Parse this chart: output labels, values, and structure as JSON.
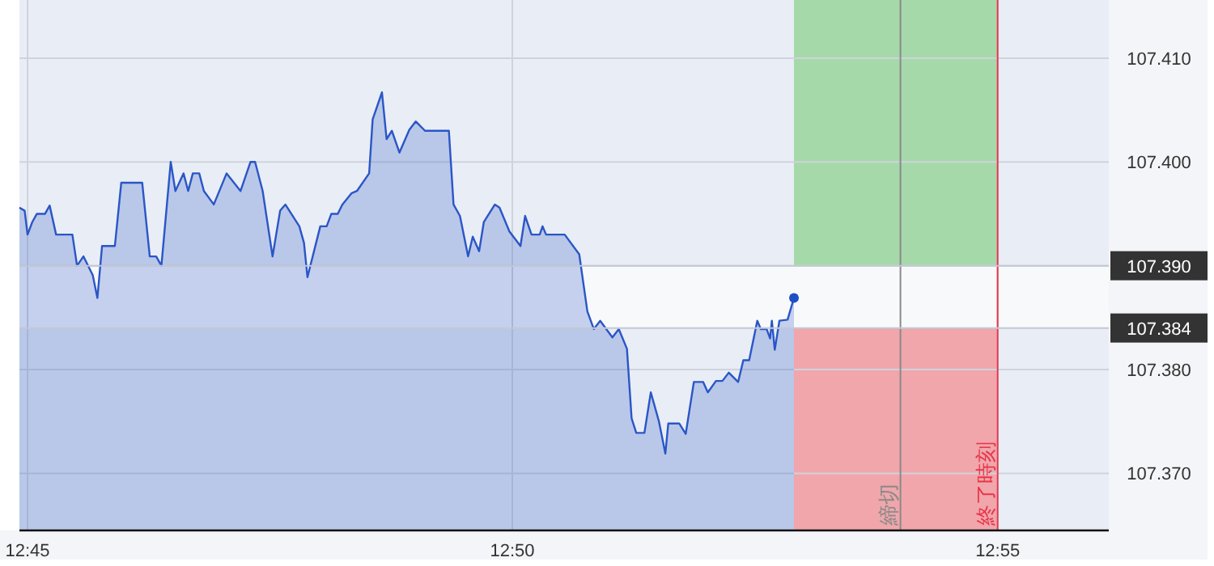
{
  "chart_data": {
    "type": "area",
    "xlim": [
      12.7486,
      12.9358
    ],
    "ylim": [
      107.3645,
      107.4156
    ],
    "xticks": [
      {
        "value": 12.75,
        "label": "12:45"
      },
      {
        "value": 12.8333,
        "label": "12:50"
      },
      {
        "value": 12.9167,
        "label": "12:55"
      }
    ],
    "yticks": [
      {
        "value": 107.37,
        "label": "107.370"
      },
      {
        "value": 107.38,
        "label": "107.380"
      },
      {
        "value": 107.39,
        "label": null
      },
      {
        "value": 107.4,
        "label": "107.400"
      },
      {
        "value": 107.41,
        "label": "107.410"
      }
    ],
    "grid": true,
    "marker": "none",
    "series": [
      {
        "color": "#2a56c6",
        "x": [
          12.7486,
          12.7495,
          12.75,
          12.7508,
          12.7516,
          12.753,
          12.7538,
          12.7549,
          12.7577,
          12.7585,
          12.7596,
          12.7612,
          12.762,
          12.7628,
          12.765,
          12.7661,
          12.7697,
          12.771,
          12.7721,
          12.773,
          12.7746,
          12.7754,
          12.7768,
          12.7776,
          12.7784,
          12.7795,
          12.7803,
          12.782,
          12.7842,
          12.7866,
          12.7883,
          12.7891,
          12.7904,
          12.7921,
          12.7934,
          12.7943,
          12.7967,
          12.7975,
          12.7981,
          12.8003,
          12.8014,
          12.8022,
          12.8033,
          12.8041,
          12.8057,
          12.8066,
          12.8087,
          12.8093,
          12.8109,
          12.8117,
          12.8126,
          12.8139,
          12.8156,
          12.8167,
          12.8183,
          12.8224,
          12.8232,
          12.8243,
          12.8257,
          12.8265,
          12.8276,
          12.8284,
          12.8303,
          12.8311,
          12.8328,
          12.8347,
          12.8355,
          12.8366,
          12.838,
          12.8385,
          12.8391,
          12.8423,
          12.8448,
          12.8462,
          12.8473,
          12.8484,
          12.8505,
          12.8516,
          12.853,
          12.8538,
          12.8546,
          12.856,
          12.8571,
          12.8585,
          12.8596,
          12.8601,
          12.862,
          12.8631,
          12.8645,
          12.8661,
          12.8669,
          12.8683,
          12.8694,
          12.8705,
          12.8721,
          12.873,
          12.874,
          12.8754,
          12.876,
          12.877,
          12.8776,
          12.8779,
          12.8784,
          12.8792,
          12.8806,
          12.8817
        ],
        "values": [
          107.3956,
          107.3953,
          107.393,
          107.3942,
          107.395,
          107.395,
          107.3958,
          107.393,
          107.393,
          107.39,
          107.3909,
          107.3891,
          107.3869,
          107.3919,
          107.3919,
          107.398,
          107.398,
          107.3909,
          107.3909,
          107.39,
          107.4,
          107.3972,
          107.3989,
          107.3972,
          107.3989,
          107.3989,
          107.3972,
          107.3959,
          107.3989,
          107.3972,
          107.4,
          107.4,
          107.3972,
          107.3909,
          107.3953,
          107.3959,
          107.3938,
          107.3922,
          107.3889,
          107.3938,
          107.3938,
          107.395,
          107.395,
          107.3959,
          107.397,
          107.3972,
          107.3989,
          107.4041,
          107.4067,
          107.4022,
          107.403,
          107.4009,
          107.4031,
          107.4039,
          107.403,
          107.403,
          107.3959,
          107.3948,
          107.3909,
          107.3928,
          107.3914,
          107.3942,
          107.3959,
          107.3956,
          107.3933,
          107.3919,
          107.3948,
          107.393,
          107.393,
          107.3938,
          107.393,
          107.393,
          107.3911,
          107.3856,
          107.3839,
          107.3847,
          107.3831,
          107.3839,
          107.382,
          107.3753,
          107.3739,
          107.3739,
          107.3778,
          107.375,
          107.3719,
          107.3748,
          107.3748,
          107.3738,
          107.3788,
          107.3788,
          107.3778,
          107.3789,
          107.3789,
          107.3797,
          107.3788,
          107.3809,
          107.3809,
          107.3847,
          107.3839,
          107.3839,
          107.383,
          107.3847,
          107.3819,
          107.3847,
          107.3848,
          107.3869
        ]
      },
      {
        "type": "scatter",
        "color": "#1f4fc4",
        "marker": "circle",
        "x": [
          12.8817
        ],
        "values": [
          107.3869
        ]
      }
    ],
    "bands": [
      {
        "axis": "y",
        "from": 107.384,
        "to": 107.39,
        "color": "#f8f9fb"
      },
      {
        "axis": "y",
        "from": 107.39,
        "to": 107.4156,
        "color": "#a6d9aa"
      },
      {
        "axis": "y",
        "from": 107.3645,
        "to": 107.384,
        "color": "#f0a6ab"
      }
    ],
    "ref_lines": [
      {
        "axis": "x",
        "value": 12.9,
        "label": "締切",
        "color": "#8a8a8a"
      },
      {
        "axis": "x",
        "value": 12.9167,
        "label": "終了時刻",
        "color": "#e8354a"
      },
      {
        "axis": "y",
        "value": 107.39,
        "label": "107.390",
        "color": "#c3c8d3"
      },
      {
        "axis": "y",
        "value": 107.384,
        "label": "107.384",
        "color": "#c3c8d3"
      }
    ]
  }
}
